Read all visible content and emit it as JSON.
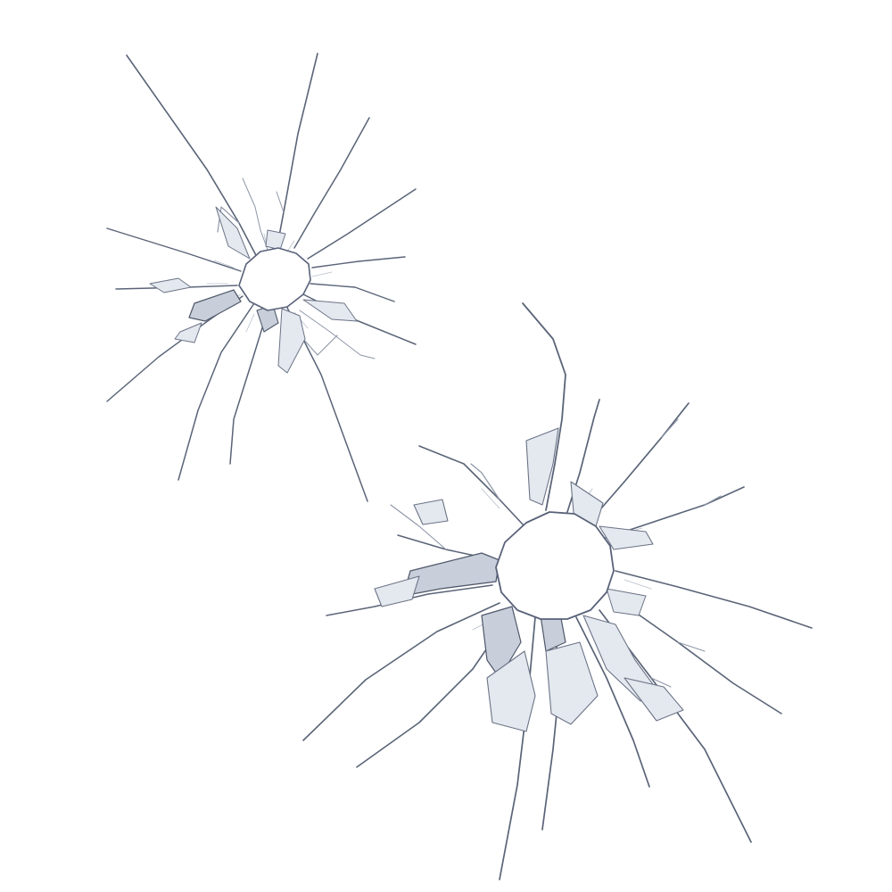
{
  "scene": {
    "background": "#ffffff",
    "crack_color": "#5a6477",
    "shard_color": "#e4e8ef",
    "impacts": [
      {
        "label": "impact-small",
        "description_icon": "shattered-glass-icon"
      },
      {
        "label": "impact-large",
        "description_icon": "shattered-glass-icon"
      }
    ]
  }
}
